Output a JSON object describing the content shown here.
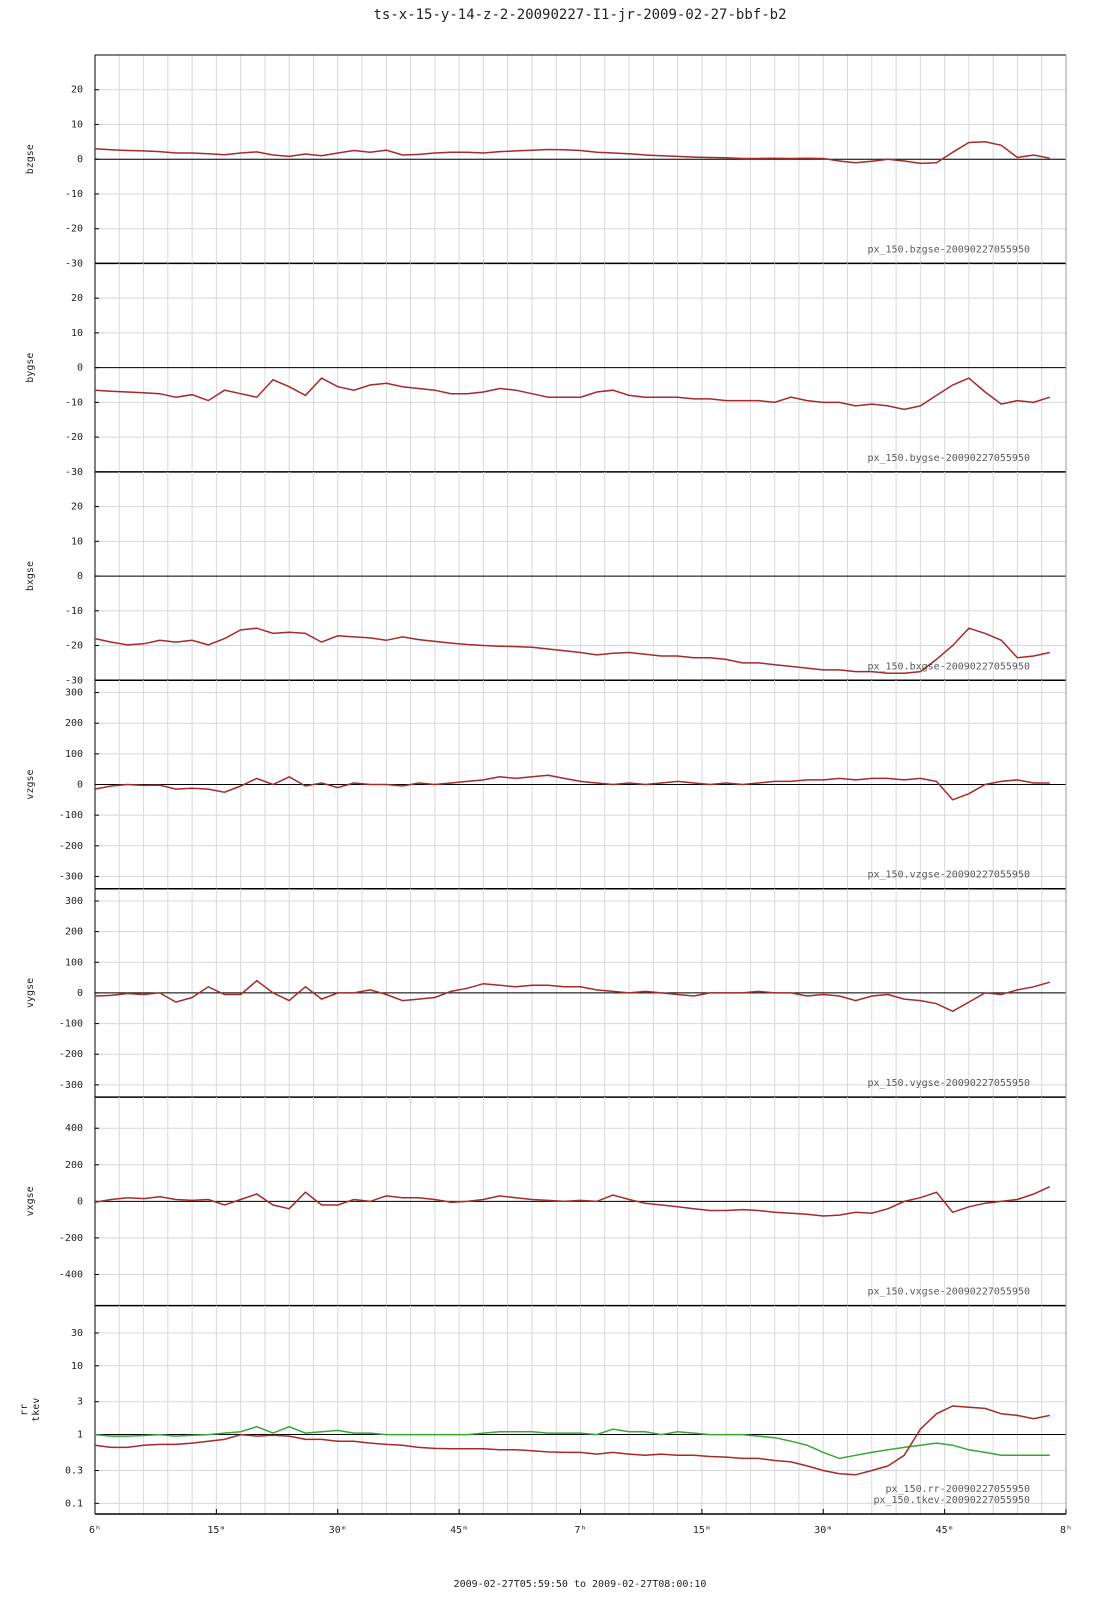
{
  "title": "ts-x-15-y-14-z-2-20090227-I1-jr-2009-02-27-bbf-b2",
  "footer": "2009-02-27T05:59:50 to 2009-02-27T08:00:10",
  "x_grid": [
    0,
    3,
    6,
    9,
    12,
    15,
    18,
    21,
    24,
    27,
    30,
    33,
    36,
    39,
    42,
    45,
    48,
    51,
    54,
    57,
    60,
    63,
    66,
    69,
    72,
    75,
    78,
    81,
    84,
    87,
    90,
    93,
    96,
    99,
    102,
    105,
    108,
    111,
    114,
    117,
    120
  ],
  "chart_data": [
    {
      "type": "line",
      "ylabel": [
        "bzgse"
      ],
      "xlim": [
        0,
        120
      ],
      "ylim": [
        -30,
        30
      ],
      "yticks": [
        -30,
        -20,
        -10,
        0,
        10,
        20
      ],
      "refline": 0,
      "grid": true,
      "x": [
        0,
        2,
        4,
        6,
        8,
        10,
        12,
        14,
        16,
        18,
        20,
        22,
        24,
        26,
        28,
        30,
        32,
        34,
        36,
        38,
        40,
        42,
        44,
        46,
        48,
        50,
        52,
        54,
        56,
        58,
        60,
        62,
        64,
        66,
        68,
        70,
        72,
        74,
        76,
        78,
        80,
        82,
        84,
        86,
        88,
        90,
        92,
        94,
        96,
        98,
        100,
        102,
        104,
        106,
        108,
        110,
        112,
        114,
        116,
        118
      ],
      "series": [
        {
          "name": "px_150.bzgse-20090227055950",
          "color": "#a52a2a",
          "values": [
            3,
            2.7,
            2.5,
            2.4,
            2.2,
            1.8,
            1.8,
            1.6,
            1.3,
            1.8,
            2.1,
            1.2,
            0.8,
            1.5,
            1.0,
            1.8,
            2.5,
            2.0,
            2.6,
            1.2,
            1.4,
            1.8,
            2.0,
            2.0,
            1.8,
            2.2,
            2.4,
            2.6,
            2.8,
            2.7,
            2.5,
            2.0,
            1.8,
            1.6,
            1.2,
            1.0,
            0.8,
            0.6,
            0.5,
            0.4,
            0.2,
            0.2,
            0.3,
            0.2,
            0.3,
            0.2,
            -0.5,
            -1.0,
            -0.6,
            0.0,
            -0.5,
            -1.2,
            -1.0,
            2.0,
            4.8,
            5.0,
            4.0,
            0.5,
            1.2,
            0.3
          ]
        }
      ]
    },
    {
      "type": "line",
      "ylabel": [
        "bygse"
      ],
      "xlim": [
        0,
        120
      ],
      "ylim": [
        -30,
        30
      ],
      "yticks": [
        -30,
        -20,
        -10,
        0,
        10,
        20
      ],
      "refline": 0,
      "grid": true,
      "x": [
        0,
        2,
        4,
        6,
        8,
        10,
        12,
        14,
        16,
        18,
        20,
        22,
        24,
        26,
        28,
        30,
        32,
        34,
        36,
        38,
        40,
        42,
        44,
        46,
        48,
        50,
        52,
        54,
        56,
        58,
        60,
        62,
        64,
        66,
        68,
        70,
        72,
        74,
        76,
        78,
        80,
        82,
        84,
        86,
        88,
        90,
        92,
        94,
        96,
        98,
        100,
        102,
        104,
        106,
        108,
        110,
        112,
        114,
        116,
        118
      ],
      "series": [
        {
          "name": "px_150.bygse-20090227055950",
          "color": "#a52a2a",
          "values": [
            -6.5,
            -6.8,
            -7,
            -7.2,
            -7.5,
            -8.5,
            -7.8,
            -9.5,
            -6.5,
            -7.5,
            -8.5,
            -3.5,
            -5.5,
            -8,
            -3,
            -5.5,
            -6.5,
            -5,
            -4.5,
            -5.5,
            -6,
            -6.5,
            -7.5,
            -7.5,
            -7,
            -6,
            -6.5,
            -7.5,
            -8.5,
            -8.5,
            -8.5,
            -7,
            -6.5,
            -8,
            -8.5,
            -8.5,
            -8.5,
            -9,
            -9,
            -9.5,
            -9.5,
            -9.5,
            -10,
            -8.5,
            -9.5,
            -10,
            -10,
            -11,
            -10.5,
            -11,
            -12,
            -11,
            -8,
            -5,
            -3,
            -7,
            -10.5,
            -9.5,
            -10,
            -8.5
          ]
        }
      ]
    },
    {
      "type": "line",
      "ylabel": [
        "bxgse"
      ],
      "xlim": [
        0,
        120
      ],
      "ylim": [
        -30,
        30
      ],
      "yticks": [
        -30,
        -20,
        -10,
        0,
        10,
        20
      ],
      "refline": 0,
      "grid": true,
      "x": [
        0,
        2,
        4,
        6,
        8,
        10,
        12,
        14,
        16,
        18,
        20,
        22,
        24,
        26,
        28,
        30,
        32,
        34,
        36,
        38,
        40,
        42,
        44,
        46,
        48,
        50,
        52,
        54,
        56,
        58,
        60,
        62,
        64,
        66,
        68,
        70,
        72,
        74,
        76,
        78,
        80,
        82,
        84,
        86,
        88,
        90,
        92,
        94,
        96,
        98,
        100,
        102,
        104,
        106,
        108,
        110,
        112,
        114,
        116,
        118
      ],
      "series": [
        {
          "name": "px_150.bxgse-20090227055950",
          "color": "#a52a2a",
          "values": [
            -18,
            -19,
            -19.8,
            -19.5,
            -18.5,
            -19,
            -18.5,
            -19.8,
            -18,
            -15.5,
            -15,
            -16.5,
            -16.2,
            -16.5,
            -19,
            -17.2,
            -17.5,
            -17.8,
            -18.5,
            -17.5,
            -18.3,
            -18.8,
            -19.3,
            -19.7,
            -20,
            -20.2,
            -20.3,
            -20.5,
            -21,
            -21.5,
            -22,
            -22.7,
            -22.2,
            -22,
            -22.5,
            -23,
            -23,
            -23.5,
            -23.5,
            -24,
            -25,
            -25,
            -25.5,
            -26,
            -26.5,
            -27,
            -27,
            -27.5,
            -27.5,
            -28,
            -28,
            -27.5,
            -24,
            -20,
            -15,
            -16.5,
            -18.5,
            -23.5,
            -23,
            -22
          ]
        }
      ]
    },
    {
      "type": "line",
      "ylabel": [
        "vzgse"
      ],
      "xlim": [
        0,
        120
      ],
      "ylim": [
        -340,
        340
      ],
      "yticks": [
        -300,
        -200,
        -100,
        0,
        100,
        200,
        300
      ],
      "refline": 0,
      "grid": true,
      "x": [
        0,
        2,
        4,
        6,
        8,
        10,
        12,
        14,
        16,
        18,
        20,
        22,
        24,
        26,
        28,
        30,
        32,
        34,
        36,
        38,
        40,
        42,
        44,
        46,
        48,
        50,
        52,
        54,
        56,
        58,
        60,
        62,
        64,
        66,
        68,
        70,
        72,
        74,
        76,
        78,
        80,
        82,
        84,
        86,
        88,
        90,
        92,
        94,
        96,
        98,
        100,
        102,
        104,
        106,
        108,
        110,
        112,
        114,
        116,
        118
      ],
      "series": [
        {
          "name": "px_150.vzgse-20090227055950",
          "color": "#a52a2a",
          "values": [
            -15,
            -5,
            0,
            -3,
            -2,
            -15,
            -12,
            -15,
            -25,
            -5,
            20,
            0,
            25,
            -5,
            5,
            -10,
            5,
            0,
            0,
            -5,
            5,
            0,
            5,
            10,
            15,
            25,
            20,
            25,
            30,
            20,
            10,
            5,
            0,
            5,
            0,
            5,
            10,
            5,
            0,
            5,
            0,
            5,
            10,
            10,
            15,
            15,
            20,
            15,
            20,
            20,
            15,
            20,
            10,
            -50,
            -30,
            0,
            10,
            15,
            5,
            5
          ]
        }
      ]
    },
    {
      "type": "line",
      "ylabel": [
        "vygse"
      ],
      "xlim": [
        0,
        120
      ],
      "ylim": [
        -340,
        340
      ],
      "yticks": [
        -300,
        -200,
        -100,
        0,
        100,
        200,
        300
      ],
      "refline": 0,
      "grid": true,
      "x": [
        0,
        2,
        4,
        6,
        8,
        10,
        12,
        14,
        16,
        18,
        20,
        22,
        24,
        26,
        28,
        30,
        32,
        34,
        36,
        38,
        40,
        42,
        44,
        46,
        48,
        50,
        52,
        54,
        56,
        58,
        60,
        62,
        64,
        66,
        68,
        70,
        72,
        74,
        76,
        78,
        80,
        82,
        84,
        86,
        88,
        90,
        92,
        94,
        96,
        98,
        100,
        102,
        104,
        106,
        108,
        110,
        112,
        114,
        116,
        118
      ],
      "series": [
        {
          "name": "px_150.vygse-20090227055950",
          "color": "#a52a2a",
          "values": [
            -10,
            -8,
            -2,
            -5,
            0,
            -30,
            -15,
            20,
            -5,
            -5,
            40,
            0,
            -25,
            20,
            -20,
            0,
            0,
            10,
            -5,
            -25,
            -20,
            -15,
            5,
            15,
            30,
            25,
            20,
            25,
            25,
            20,
            20,
            10,
            5,
            0,
            5,
            0,
            -5,
            -10,
            0,
            0,
            0,
            5,
            0,
            0,
            -10,
            -5,
            -10,
            -25,
            -10,
            -5,
            -20,
            -25,
            -35,
            -60,
            -30,
            0,
            -5,
            10,
            20,
            35
          ]
        }
      ]
    },
    {
      "type": "line",
      "ylabel": [
        "vxgse"
      ],
      "xlim": [
        0,
        120
      ],
      "ylim": [
        -570,
        570
      ],
      "yticks": [
        -400,
        -200,
        0,
        200,
        400
      ],
      "refline": 0,
      "grid": true,
      "x": [
        0,
        2,
        4,
        6,
        8,
        10,
        12,
        14,
        16,
        18,
        20,
        22,
        24,
        26,
        28,
        30,
        32,
        34,
        36,
        38,
        40,
        42,
        44,
        46,
        48,
        50,
        52,
        54,
        56,
        58,
        60,
        62,
        64,
        66,
        68,
        70,
        72,
        74,
        76,
        78,
        80,
        82,
        84,
        86,
        88,
        90,
        92,
        94,
        96,
        98,
        100,
        102,
        104,
        106,
        108,
        110,
        112,
        114,
        116,
        118
      ],
      "series": [
        {
          "name": "px_150.vxgse-20090227055950",
          "color": "#a52a2a",
          "values": [
            -5,
            10,
            20,
            15,
            25,
            10,
            5,
            10,
            -20,
            10,
            40,
            -20,
            -40,
            50,
            -20,
            -20,
            10,
            0,
            30,
            20,
            20,
            10,
            -5,
            0,
            10,
            30,
            20,
            10,
            5,
            0,
            5,
            0,
            35,
            10,
            -10,
            -20,
            -30,
            -40,
            -50,
            -50,
            -45,
            -50,
            -60,
            -65,
            -70,
            -80,
            -75,
            -60,
            -65,
            -40,
            0,
            20,
            50,
            -60,
            -30,
            -10,
            0,
            10,
            40,
            80
          ]
        }
      ]
    },
    {
      "type": "line",
      "ylabel": [
        "rr",
        "tkev"
      ],
      "log_y": true,
      "xlim": [
        0,
        120
      ],
      "ylim": [
        0.07,
        75
      ],
      "yticks": [
        0.1,
        0.3,
        1,
        3,
        10,
        30
      ],
      "refline": 1,
      "grid": true,
      "xticks": [
        {
          "value": 0,
          "label": "6ʰ"
        },
        {
          "value": 15,
          "label": "15ᵐ"
        },
        {
          "value": 30,
          "label": "30ᵐ"
        },
        {
          "value": 45,
          "label": "45ᵐ"
        },
        {
          "value": 60,
          "label": "7ʰ"
        },
        {
          "value": 75,
          "label": "15ᵐ"
        },
        {
          "value": 90,
          "label": "30ᵐ"
        },
        {
          "value": 105,
          "label": "45ᵐ"
        },
        {
          "value": 120,
          "label": "8ʰ"
        }
      ],
      "x": [
        0,
        2,
        4,
        6,
        8,
        10,
        12,
        14,
        16,
        18,
        20,
        22,
        24,
        26,
        28,
        30,
        32,
        34,
        36,
        38,
        40,
        42,
        44,
        46,
        48,
        50,
        52,
        54,
        56,
        58,
        60,
        62,
        64,
        66,
        68,
        70,
        72,
        74,
        76,
        78,
        80,
        82,
        84,
        86,
        88,
        90,
        92,
        94,
        96,
        98,
        100,
        102,
        104,
        106,
        108,
        110,
        112,
        114,
        116,
        118
      ],
      "series": [
        {
          "name": "px_150.rr-20090227055950",
          "color": "#33a833",
          "values": [
            1,
            0.95,
            0.95,
            0.97,
            1.0,
            0.95,
            0.98,
            1.0,
            1.05,
            1.1,
            1.3,
            1.05,
            1.3,
            1.05,
            1.1,
            1.15,
            1.05,
            1.05,
            1.0,
            1.0,
            1.0,
            1.0,
            1.0,
            1.0,
            1.05,
            1.1,
            1.1,
            1.1,
            1.05,
            1.05,
            1.05,
            1.0,
            1.2,
            1.1,
            1.1,
            1.0,
            1.1,
            1.05,
            1.0,
            1.0,
            1.0,
            0.95,
            0.9,
            0.8,
            0.7,
            0.55,
            0.45,
            0.5,
            0.55,
            0.6,
            0.65,
            0.7,
            0.75,
            0.7,
            0.6,
            0.55,
            0.5,
            0.5,
            0.5,
            0.5
          ]
        },
        {
          "name": "px_150.tkev-20090227055950",
          "color": "#a52a2a",
          "values": [
            0.7,
            0.65,
            0.65,
            0.7,
            0.72,
            0.72,
            0.75,
            0.8,
            0.85,
            1.0,
            0.95,
            0.98,
            0.95,
            0.85,
            0.85,
            0.8,
            0.8,
            0.75,
            0.72,
            0.7,
            0.65,
            0.63,
            0.62,
            0.62,
            0.62,
            0.6,
            0.6,
            0.58,
            0.56,
            0.55,
            0.55,
            0.52,
            0.55,
            0.52,
            0.5,
            0.52,
            0.5,
            0.5,
            0.48,
            0.47,
            0.45,
            0.45,
            0.42,
            0.4,
            0.35,
            0.3,
            0.27,
            0.26,
            0.3,
            0.35,
            0.5,
            1.2,
            2.0,
            2.6,
            2.5,
            2.4,
            2.0,
            1.9,
            1.7,
            1.9
          ]
        }
      ]
    }
  ]
}
